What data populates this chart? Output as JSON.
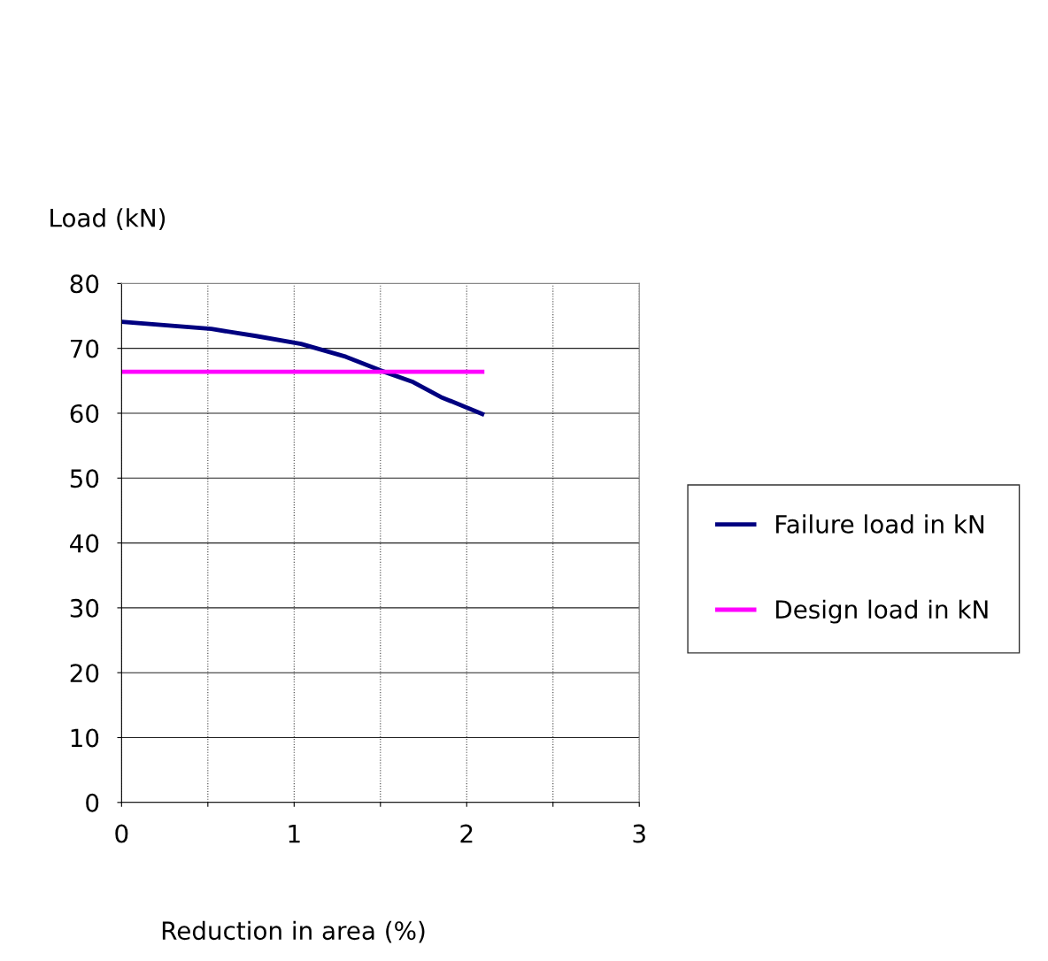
{
  "chart_data": {
    "type": "line",
    "xlabel": "Reduction in area (%)",
    "ylabel": "Load (kN)",
    "xlim": [
      0,
      3
    ],
    "xticks": [
      0,
      {
        "value": 0.5,
        "label": null
      },
      1,
      {
        "value": 1.5,
        "label": null
      },
      2,
      {
        "value": 2.5,
        "label": null
      },
      3
    ],
    "ylim": [
      0,
      80
    ],
    "yticks": [
      0,
      10,
      20,
      30,
      40,
      50,
      60,
      70,
      80
    ],
    "series": [
      {
        "name": "Failure load in kN",
        "color": "#000080",
        "x": [
          0,
          0.52,
          0.78,
          1.04,
          1.3,
          1.5,
          1.69,
          1.85,
          2.09
        ],
        "values": [
          74.1,
          73.0,
          71.9,
          70.7,
          68.7,
          66.6,
          64.8,
          62.5,
          59.9
        ]
      },
      {
        "name": "Design load in kN",
        "color": "#ff00ff",
        "x": [
          0,
          2.09
        ],
        "values": [
          66.4,
          66.4
        ]
      }
    ],
    "grid": true,
    "legend": "right",
    "marker": "none",
    "line_style": "solid"
  }
}
